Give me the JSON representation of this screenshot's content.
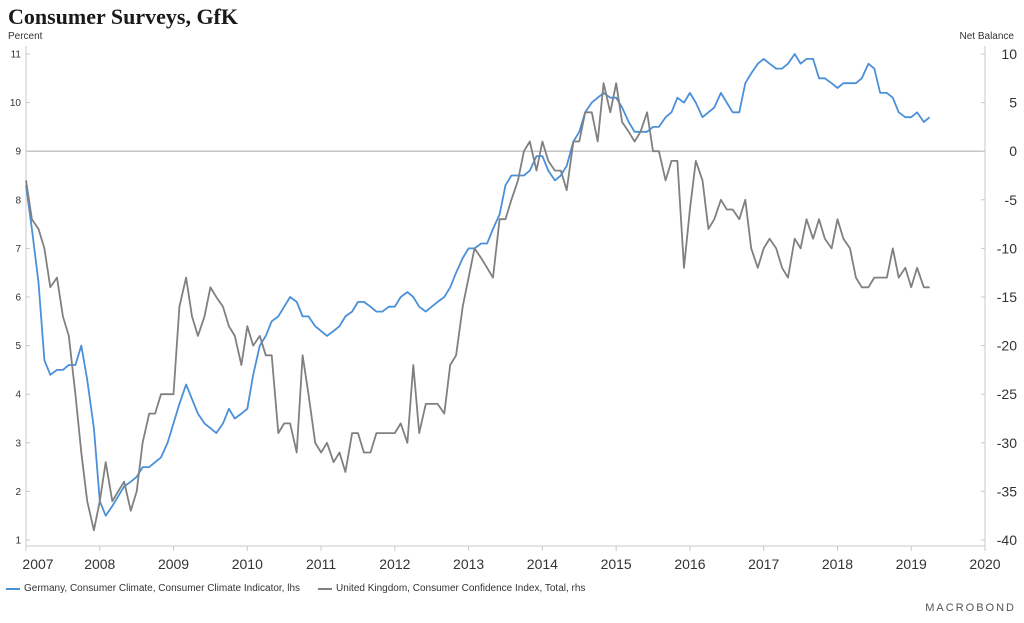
{
  "chart_data": {
    "type": "line",
    "title": "Consumer Surveys, GfK",
    "ylabel_left": "Percent",
    "ylabel_right": "Net Balance",
    "xlim": [
      2007.0,
      2020.0
    ],
    "ylim_left": [
      1,
      11
    ],
    "ylim_right": [
      -40,
      10
    ],
    "x_ticks": [
      "2007",
      "2008",
      "2009",
      "2010",
      "2011",
      "2012",
      "2013",
      "2014",
      "2015",
      "2016",
      "2017",
      "2018",
      "2019",
      "2020"
    ],
    "y_ticks_left": [
      "1",
      "2",
      "3",
      "4",
      "5",
      "6",
      "7",
      "8",
      "9",
      "10",
      "11"
    ],
    "y_ticks_right": [
      "-40",
      "-35",
      "-30",
      "-25",
      "-20",
      "-15",
      "-10",
      "-5",
      "0",
      "5",
      "10"
    ],
    "zero_line_right": 0,
    "grid": false,
    "legend_position": "bottom-left",
    "series": [
      {
        "name": "Germany, Consumer Climate, Consumer Climate Indicator, lhs",
        "axis": "left",
        "color": "#4a90d9",
        "points": [
          [
            2007.0,
            8.3
          ],
          [
            2007.08,
            7.4
          ],
          [
            2007.17,
            6.3
          ],
          [
            2007.25,
            4.7
          ],
          [
            2007.33,
            4.4
          ],
          [
            2007.42,
            4.5
          ],
          [
            2007.5,
            4.5
          ],
          [
            2007.58,
            4.6
          ],
          [
            2007.67,
            4.6
          ],
          [
            2007.75,
            5.0
          ],
          [
            2007.83,
            4.3
          ],
          [
            2007.92,
            3.3
          ],
          [
            2008.0,
            1.8
          ],
          [
            2008.08,
            1.5
          ],
          [
            2008.17,
            1.7
          ],
          [
            2008.25,
            1.9
          ],
          [
            2008.33,
            2.1
          ],
          [
            2008.42,
            2.2
          ],
          [
            2008.5,
            2.3
          ],
          [
            2008.58,
            2.5
          ],
          [
            2008.67,
            2.5
          ],
          [
            2008.75,
            2.6
          ],
          [
            2008.83,
            2.7
          ],
          [
            2008.92,
            3.0
          ],
          [
            2009.0,
            3.4
          ],
          [
            2009.08,
            3.8
          ],
          [
            2009.17,
            4.2
          ],
          [
            2009.25,
            3.9
          ],
          [
            2009.33,
            3.6
          ],
          [
            2009.42,
            3.4
          ],
          [
            2009.5,
            3.3
          ],
          [
            2009.58,
            3.2
          ],
          [
            2009.67,
            3.4
          ],
          [
            2009.75,
            3.7
          ],
          [
            2009.83,
            3.5
          ],
          [
            2009.92,
            3.6
          ],
          [
            2010.0,
            3.7
          ],
          [
            2010.08,
            4.4
          ],
          [
            2010.17,
            5.0
          ],
          [
            2010.25,
            5.2
          ],
          [
            2010.33,
            5.5
          ],
          [
            2010.42,
            5.6
          ],
          [
            2010.5,
            5.8
          ],
          [
            2010.58,
            6.0
          ],
          [
            2010.67,
            5.9
          ],
          [
            2010.75,
            5.6
          ],
          [
            2010.83,
            5.6
          ],
          [
            2010.92,
            5.4
          ],
          [
            2011.0,
            5.3
          ],
          [
            2011.08,
            5.2
          ],
          [
            2011.17,
            5.3
          ],
          [
            2011.25,
            5.4
          ],
          [
            2011.33,
            5.6
          ],
          [
            2011.42,
            5.7
          ],
          [
            2011.5,
            5.9
          ],
          [
            2011.58,
            5.9
          ],
          [
            2011.67,
            5.8
          ],
          [
            2011.75,
            5.7
          ],
          [
            2011.83,
            5.7
          ],
          [
            2011.92,
            5.8
          ],
          [
            2012.0,
            5.8
          ],
          [
            2012.08,
            6.0
          ],
          [
            2012.17,
            6.1
          ],
          [
            2012.25,
            6.0
          ],
          [
            2012.33,
            5.8
          ],
          [
            2012.42,
            5.7
          ],
          [
            2012.5,
            5.8
          ],
          [
            2012.58,
            5.9
          ],
          [
            2012.67,
            6.0
          ],
          [
            2012.75,
            6.2
          ],
          [
            2012.83,
            6.5
          ],
          [
            2012.92,
            6.8
          ],
          [
            2013.0,
            7.0
          ],
          [
            2013.08,
            7.0
          ],
          [
            2013.17,
            7.1
          ],
          [
            2013.25,
            7.1
          ],
          [
            2013.33,
            7.4
          ],
          [
            2013.42,
            7.7
          ],
          [
            2013.5,
            8.3
          ],
          [
            2013.58,
            8.5
          ],
          [
            2013.67,
            8.5
          ],
          [
            2013.75,
            8.5
          ],
          [
            2013.83,
            8.6
          ],
          [
            2013.92,
            8.9
          ],
          [
            2014.0,
            8.9
          ],
          [
            2014.08,
            8.6
          ],
          [
            2014.17,
            8.4
          ],
          [
            2014.25,
            8.5
          ],
          [
            2014.33,
            8.7
          ],
          [
            2014.42,
            9.2
          ],
          [
            2014.5,
            9.4
          ],
          [
            2014.58,
            9.8
          ],
          [
            2014.67,
            10.0
          ],
          [
            2014.75,
            10.1
          ],
          [
            2014.83,
            10.2
          ],
          [
            2014.92,
            10.1
          ],
          [
            2015.0,
            10.1
          ],
          [
            2015.08,
            9.9
          ],
          [
            2015.17,
            9.6
          ],
          [
            2015.25,
            9.4
          ],
          [
            2015.33,
            9.4
          ],
          [
            2015.42,
            9.4
          ],
          [
            2015.5,
            9.5
          ],
          [
            2015.58,
            9.5
          ],
          [
            2015.67,
            9.7
          ],
          [
            2015.75,
            9.8
          ],
          [
            2015.83,
            10.1
          ],
          [
            2015.92,
            10.0
          ],
          [
            2016.0,
            10.2
          ],
          [
            2016.08,
            10.0
          ],
          [
            2016.17,
            9.7
          ],
          [
            2016.25,
            9.8
          ],
          [
            2016.33,
            9.9
          ],
          [
            2016.42,
            10.2
          ],
          [
            2016.5,
            10.0
          ],
          [
            2016.58,
            9.8
          ],
          [
            2016.67,
            9.8
          ],
          [
            2016.75,
            10.4
          ],
          [
            2016.83,
            10.6
          ],
          [
            2016.92,
            10.8
          ],
          [
            2017.0,
            10.9
          ],
          [
            2017.08,
            10.8
          ],
          [
            2017.17,
            10.7
          ],
          [
            2017.25,
            10.7
          ],
          [
            2017.33,
            10.8
          ],
          [
            2017.42,
            11.0
          ],
          [
            2017.5,
            10.8
          ],
          [
            2017.58,
            10.9
          ],
          [
            2017.67,
            10.9
          ],
          [
            2017.75,
            10.5
          ],
          [
            2017.83,
            10.5
          ],
          [
            2017.92,
            10.4
          ],
          [
            2018.0,
            10.3
          ],
          [
            2018.08,
            10.4
          ],
          [
            2018.17,
            10.4
          ],
          [
            2018.25,
            10.4
          ],
          [
            2018.33,
            10.5
          ],
          [
            2018.42,
            10.8
          ],
          [
            2018.5,
            10.7
          ],
          [
            2018.58,
            10.2
          ],
          [
            2018.67,
            10.2
          ],
          [
            2018.75,
            10.1
          ],
          [
            2018.83,
            9.8
          ],
          [
            2018.92,
            9.7
          ],
          [
            2019.0,
            9.7
          ],
          [
            2019.08,
            9.8
          ],
          [
            2019.17,
            9.6
          ],
          [
            2019.25,
            9.7
          ]
        ]
      },
      {
        "name": "United Kingdom, Consumer Confidence Index, Total, rhs",
        "axis": "right",
        "color": "#808080",
        "points": [
          [
            2007.0,
            -3
          ],
          [
            2007.08,
            -7
          ],
          [
            2007.17,
            -8
          ],
          [
            2007.25,
            -10
          ],
          [
            2007.33,
            -14
          ],
          [
            2007.42,
            -13
          ],
          [
            2007.5,
            -17
          ],
          [
            2007.58,
            -19
          ],
          [
            2007.67,
            -25
          ],
          [
            2007.75,
            -31
          ],
          [
            2007.83,
            -36
          ],
          [
            2007.92,
            -39
          ],
          [
            2008.0,
            -36
          ],
          [
            2008.08,
            -32
          ],
          [
            2008.17,
            -36
          ],
          [
            2008.25,
            -35
          ],
          [
            2008.33,
            -34
          ],
          [
            2008.42,
            -37
          ],
          [
            2008.5,
            -35
          ],
          [
            2008.58,
            -30
          ],
          [
            2008.67,
            -27
          ],
          [
            2008.75,
            -27
          ],
          [
            2008.83,
            -25
          ],
          [
            2008.92,
            -25
          ],
          [
            2009.0,
            -25
          ],
          [
            2009.08,
            -16
          ],
          [
            2009.17,
            -13
          ],
          [
            2009.25,
            -17
          ],
          [
            2009.33,
            -19
          ],
          [
            2009.42,
            -17
          ],
          [
            2009.5,
            -14
          ],
          [
            2009.58,
            -15
          ],
          [
            2009.67,
            -16
          ],
          [
            2009.75,
            -18
          ],
          [
            2009.83,
            -19
          ],
          [
            2009.92,
            -22
          ],
          [
            2010.0,
            -18
          ],
          [
            2010.08,
            -20
          ],
          [
            2010.17,
            -19
          ],
          [
            2010.25,
            -21
          ],
          [
            2010.33,
            -21
          ],
          [
            2010.42,
            -29
          ],
          [
            2010.5,
            -28
          ],
          [
            2010.58,
            -28
          ],
          [
            2010.67,
            -31
          ],
          [
            2010.75,
            -21
          ],
          [
            2010.83,
            -25
          ],
          [
            2010.92,
            -30
          ],
          [
            2011.0,
            -31
          ],
          [
            2011.08,
            -30
          ],
          [
            2011.17,
            -32
          ],
          [
            2011.25,
            -31
          ],
          [
            2011.33,
            -33
          ],
          [
            2011.42,
            -29
          ],
          [
            2011.5,
            -29
          ],
          [
            2011.58,
            -31
          ],
          [
            2011.67,
            -31
          ],
          [
            2011.75,
            -29
          ],
          [
            2011.83,
            -29
          ],
          [
            2011.92,
            -29
          ],
          [
            2012.0,
            -29
          ],
          [
            2012.08,
            -28
          ],
          [
            2012.17,
            -30
          ],
          [
            2012.25,
            -22
          ],
          [
            2012.33,
            -29
          ],
          [
            2012.42,
            -26
          ],
          [
            2012.5,
            -26
          ],
          [
            2012.58,
            -26
          ],
          [
            2012.67,
            -27
          ],
          [
            2012.75,
            -22
          ],
          [
            2012.83,
            -21
          ],
          [
            2012.92,
            -16
          ],
          [
            2013.0,
            -13
          ],
          [
            2013.08,
            -10
          ],
          [
            2013.17,
            -11
          ],
          [
            2013.25,
            -12
          ],
          [
            2013.33,
            -13
          ],
          [
            2013.42,
            -7
          ],
          [
            2013.5,
            -7
          ],
          [
            2013.58,
            -5
          ],
          [
            2013.67,
            -3
          ],
          [
            2013.75,
            0
          ],
          [
            2013.83,
            1
          ],
          [
            2013.92,
            -2
          ],
          [
            2014.0,
            1
          ],
          [
            2014.08,
            -1
          ],
          [
            2014.17,
            -2
          ],
          [
            2014.25,
            -2
          ],
          [
            2014.33,
            -4
          ],
          [
            2014.42,
            1
          ],
          [
            2014.5,
            1
          ],
          [
            2014.58,
            4
          ],
          [
            2014.67,
            4
          ],
          [
            2014.75,
            1
          ],
          [
            2014.83,
            7
          ],
          [
            2014.92,
            4
          ],
          [
            2015.0,
            7
          ],
          [
            2015.08,
            3
          ],
          [
            2015.17,
            2
          ],
          [
            2015.25,
            1
          ],
          [
            2015.33,
            2
          ],
          [
            2015.42,
            4
          ],
          [
            2015.5,
            0
          ],
          [
            2015.58,
            0
          ],
          [
            2015.67,
            -3
          ],
          [
            2015.75,
            -1
          ],
          [
            2015.83,
            -1
          ],
          [
            2015.92,
            -12
          ],
          [
            2016.0,
            -6
          ],
          [
            2016.08,
            -1
          ],
          [
            2016.17,
            -3
          ],
          [
            2016.25,
            -8
          ],
          [
            2016.33,
            -7
          ],
          [
            2016.42,
            -5
          ],
          [
            2016.5,
            -6
          ],
          [
            2016.58,
            -6
          ],
          [
            2016.67,
            -7
          ],
          [
            2016.75,
            -5
          ],
          [
            2016.83,
            -10
          ],
          [
            2016.92,
            -12
          ],
          [
            2017.0,
            -10
          ],
          [
            2017.08,
            -9
          ],
          [
            2017.17,
            -10
          ],
          [
            2017.25,
            -12
          ],
          [
            2017.33,
            -13
          ],
          [
            2017.42,
            -9
          ],
          [
            2017.5,
            -10
          ],
          [
            2017.58,
            -7
          ],
          [
            2017.67,
            -9
          ],
          [
            2017.75,
            -7
          ],
          [
            2017.83,
            -9
          ],
          [
            2017.92,
            -10
          ],
          [
            2018.0,
            -7
          ],
          [
            2018.08,
            -9
          ],
          [
            2018.17,
            -10
          ],
          [
            2018.25,
            -13
          ],
          [
            2018.33,
            -14
          ],
          [
            2018.42,
            -14
          ],
          [
            2018.5,
            -13
          ],
          [
            2018.58,
            -13
          ],
          [
            2018.67,
            -13
          ],
          [
            2018.75,
            -10
          ],
          [
            2018.83,
            -13
          ],
          [
            2018.92,
            -12
          ],
          [
            2019.0,
            -14
          ],
          [
            2019.08,
            -12
          ],
          [
            2019.17,
            -14
          ],
          [
            2019.25,
            -14
          ]
        ]
      }
    ]
  },
  "footer": {
    "legend_germany": "Germany, Consumer Climate, Consumer Climate Indicator, lhs",
    "legend_uk": "United Kingdom, Consumer Confidence Index, Total, rhs",
    "source_logo": "MACROBOND"
  }
}
